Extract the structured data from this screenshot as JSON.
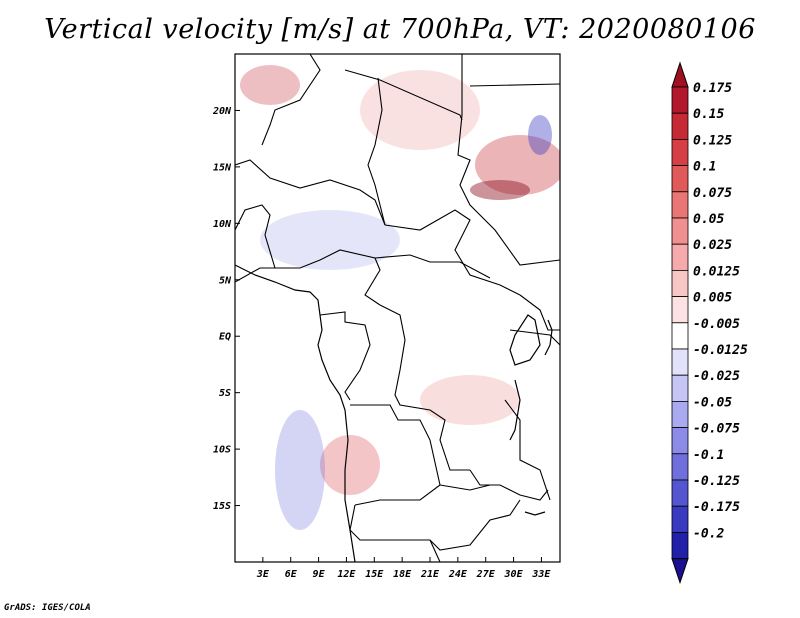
{
  "title": "Vertical velocity [m/s] at 700hPa, VT: 2020080106",
  "credit": "GrADS: IGES/COLA",
  "map": {
    "lon_range": [
      0,
      35
    ],
    "lat_range": [
      -20,
      25
    ],
    "lon_ticks": [
      {
        "value": 3,
        "label": "3E"
      },
      {
        "value": 6,
        "label": "6E"
      },
      {
        "value": 9,
        "label": "9E"
      },
      {
        "value": 12,
        "label": "12E"
      },
      {
        "value": 15,
        "label": "15E"
      },
      {
        "value": 18,
        "label": "18E"
      },
      {
        "value": 21,
        "label": "21E"
      },
      {
        "value": 24,
        "label": "24E"
      },
      {
        "value": 27,
        "label": "27E"
      },
      {
        "value": 30,
        "label": "30E"
      },
      {
        "value": 33,
        "label": "33E"
      }
    ],
    "lat_ticks": [
      {
        "value": 20,
        "label": "20N"
      },
      {
        "value": 15,
        "label": "15N"
      },
      {
        "value": 10,
        "label": "10N"
      },
      {
        "value": 5,
        "label": "5N"
      },
      {
        "value": 0,
        "label": "EQ"
      },
      {
        "value": -5,
        "label": "5S"
      },
      {
        "value": -10,
        "label": "10S"
      },
      {
        "value": -15,
        "label": "15S"
      }
    ]
  },
  "colorbar": {
    "levels": [
      {
        "label": "0.175",
        "color": "#b2182b"
      },
      {
        "label": "0.15",
        "color": "#c62a35"
      },
      {
        "label": "0.125",
        "color": "#d63f45"
      },
      {
        "label": "0.1",
        "color": "#e05a5a"
      },
      {
        "label": "0.075",
        "color": "#e97575"
      },
      {
        "label": "0.05",
        "color": "#f09090"
      },
      {
        "label": "0.025",
        "color": "#f5abab"
      },
      {
        "label": "0.0125",
        "color": "#f9c6c6"
      },
      {
        "label": "0.005",
        "color": "#fce2e2"
      },
      {
        "label": "-0.005",
        "color": "#ffffff"
      },
      {
        "label": "-0.0125",
        "color": "#e2e2fb"
      },
      {
        "label": "-0.025",
        "color": "#c6c6f6"
      },
      {
        "label": "-0.05",
        "color": "#aaaaf0"
      },
      {
        "label": "-0.075",
        "color": "#8c8ce8"
      },
      {
        "label": "-0.1",
        "color": "#7070dd"
      },
      {
        "label": "-0.125",
        "color": "#5555d0"
      },
      {
        "label": "-0.175",
        "color": "#3a3ac0"
      },
      {
        "label": "-0.2",
        "color": "#2020a8"
      }
    ],
    "top_color": "#a01020",
    "bottom_color": "#1a1090"
  }
}
